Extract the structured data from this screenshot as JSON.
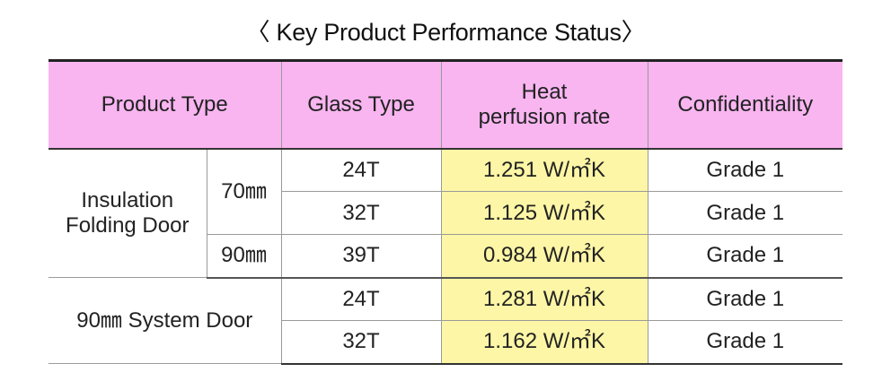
{
  "title": "〈 Key Product Performance Status〉",
  "headers": {
    "product_type": "Product Type",
    "glass_type": "Glass Type",
    "heat_line1": "Heat",
    "heat_line2": "perfusion rate",
    "confidentiality": "Confidentiality"
  },
  "groups": {
    "insulation_line1": "Insulation",
    "insulation_line2": "Folding Door",
    "size_70": "70㎜",
    "size_90": "90㎜",
    "system_door": "90㎜ System Door"
  },
  "rows": [
    {
      "glass": "24T",
      "rate": "1.251 W/㎡K",
      "grade": "Grade 1"
    },
    {
      "glass": "32T",
      "rate": "1.125 W/㎡K",
      "grade": "Grade 1"
    },
    {
      "glass": "39T",
      "rate": "0.984 W/㎡K",
      "grade": "Grade 1"
    },
    {
      "glass": "24T",
      "rate": "1.281 W/㎡K",
      "grade": "Grade 1"
    },
    {
      "glass": "32T",
      "rate": "1.162 W/㎡K",
      "grade": "Grade 1"
    }
  ],
  "colors": {
    "header_bg": "#f8b5f0",
    "rate_bg": "#fdf6a6"
  }
}
